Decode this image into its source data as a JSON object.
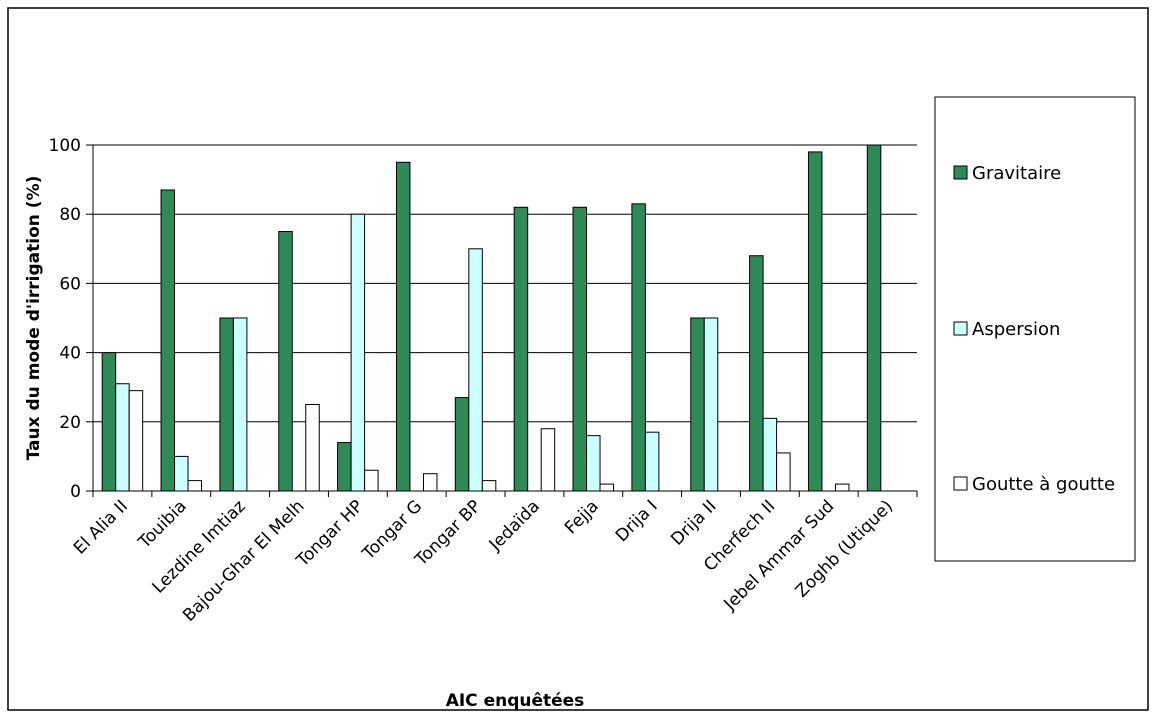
{
  "chart_data": {
    "type": "bar",
    "title": "",
    "xlabel": "AIC enquêtées",
    "ylabel": "Taux du mode d'irrigation (%)",
    "ylim": [
      0,
      100
    ],
    "yticks": [
      0,
      20,
      40,
      60,
      80,
      100
    ],
    "grid": true,
    "legend_position": "right",
    "categories": [
      "El Alia II",
      "Touibia",
      "Lezdine Imtiaz",
      "Bajou-Ghar El Melh",
      "Tongar HP",
      "Tongar G",
      "Tongar BP",
      "Jedaïda",
      "Fejja",
      "Drija I",
      "Drija II",
      "Cherfech II",
      "Jebel Ammar Sud",
      "Zoghb (Utique)"
    ],
    "series": [
      {
        "name": "Gravitaire",
        "color": "#2e8b57",
        "values": [
          40,
          87,
          50,
          75,
          14,
          95,
          27,
          82,
          82,
          83,
          50,
          68,
          98,
          100
        ]
      },
      {
        "name": "Aspersion",
        "color": "#ccffff",
        "values": [
          31,
          10,
          50,
          0,
          80,
          0,
          70,
          0,
          16,
          17,
          50,
          21,
          0,
          0
        ]
      },
      {
        "name": "Goutte à goutte",
        "color": "#ffffff",
        "values": [
          29,
          3,
          0,
          25,
          6,
          5,
          3,
          18,
          2,
          0,
          0,
          11,
          2,
          0
        ]
      }
    ]
  }
}
